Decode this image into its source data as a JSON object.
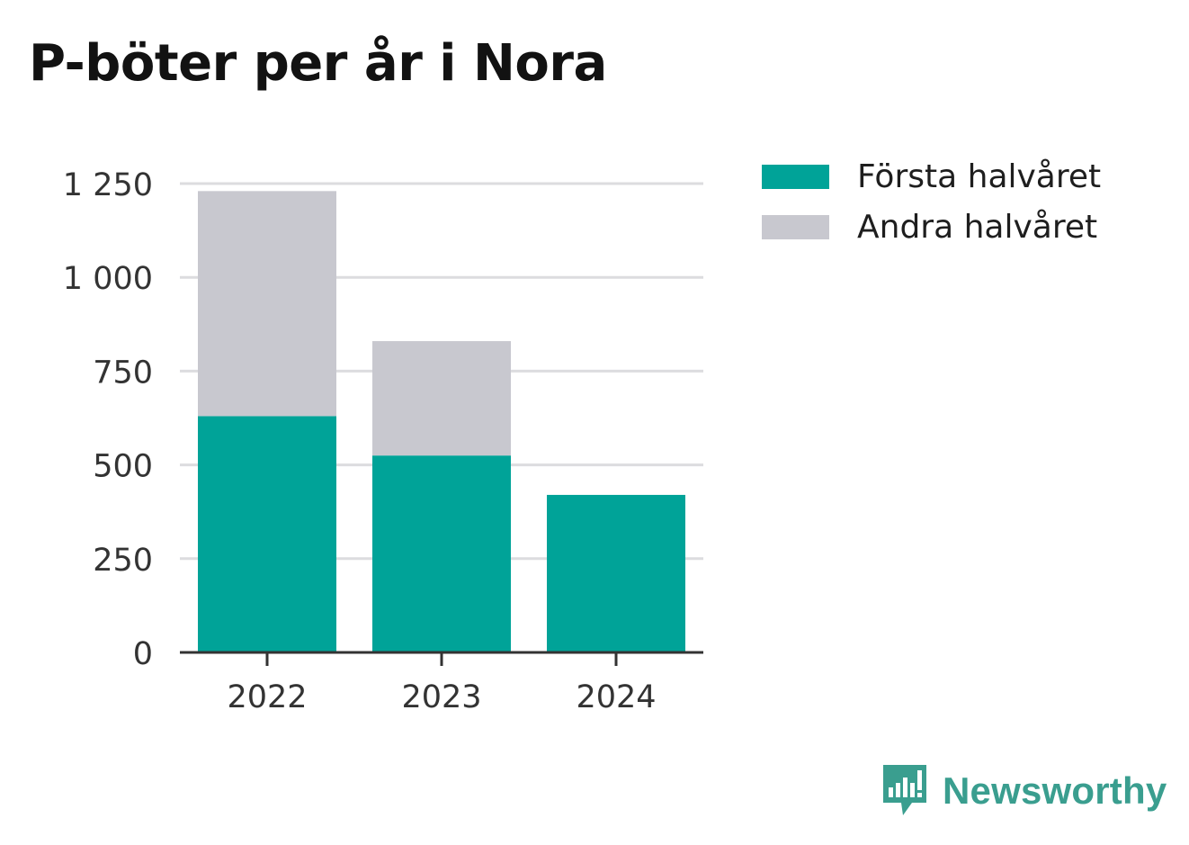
{
  "title": "P-böter per år i Nora",
  "chart_data": {
    "type": "bar",
    "stacked": true,
    "title": "P-böter per år i Nora",
    "categories": [
      "2022",
      "2023",
      "2024"
    ],
    "series": [
      {
        "name": "Första halvåret",
        "values": [
          630,
          525,
          420
        ],
        "color": "#00a398"
      },
      {
        "name": "Andra halvåret",
        "values": [
          600,
          305,
          0
        ],
        "color": "#c8c8cf"
      }
    ],
    "yticks": [
      0,
      250,
      500,
      750,
      1000,
      1250
    ],
    "ytick_labels": [
      "0",
      "250",
      "500",
      "750",
      "1 000",
      "1 250"
    ],
    "ylim": [
      0,
      1250
    ],
    "grid": true,
    "legend_position": "top-right"
  },
  "legend": [
    {
      "label": "Första halvåret",
      "color": "#00a398"
    },
    {
      "label": "Andra halvåret",
      "color": "#c8c8cf"
    }
  ],
  "logo": {
    "text": "Newsworthy",
    "color": "#3a9e8f",
    "icon": "newsworthy-logo-icon"
  }
}
